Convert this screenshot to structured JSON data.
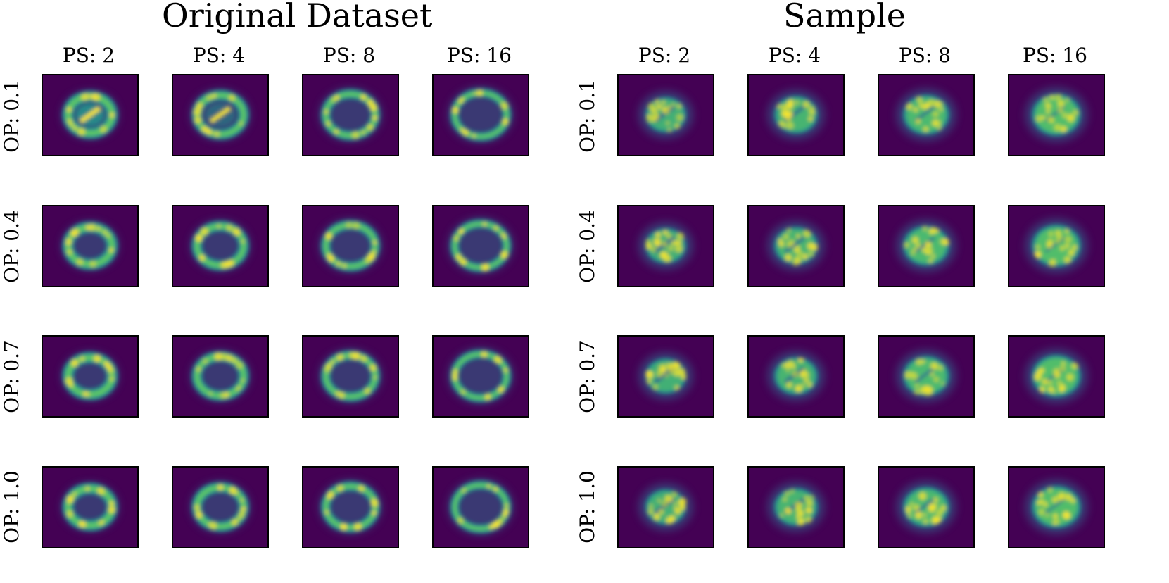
{
  "panels": [
    {
      "title": "Original Dataset",
      "kind": "ring",
      "columns": [
        "PS: 2",
        "PS: 4",
        "PS: 8",
        "PS: 16"
      ],
      "rows": [
        "OP: 0.1",
        "OP: 0.4",
        "OP: 0.7",
        "OP: 1.0"
      ]
    },
    {
      "title": "Sample",
      "kind": "filled",
      "columns": [
        "PS: 2",
        "PS: 4",
        "PS: 8",
        "PS: 16"
      ],
      "rows": [
        "OP: 0.1",
        "OP: 0.4",
        "OP: 0.7",
        "OP: 1.0"
      ]
    }
  ],
  "colors": {
    "background": "#440154",
    "halo": "#31688e",
    "mid": "#21918c",
    "bright": "#5ec962",
    "peak": "#fde725"
  }
}
